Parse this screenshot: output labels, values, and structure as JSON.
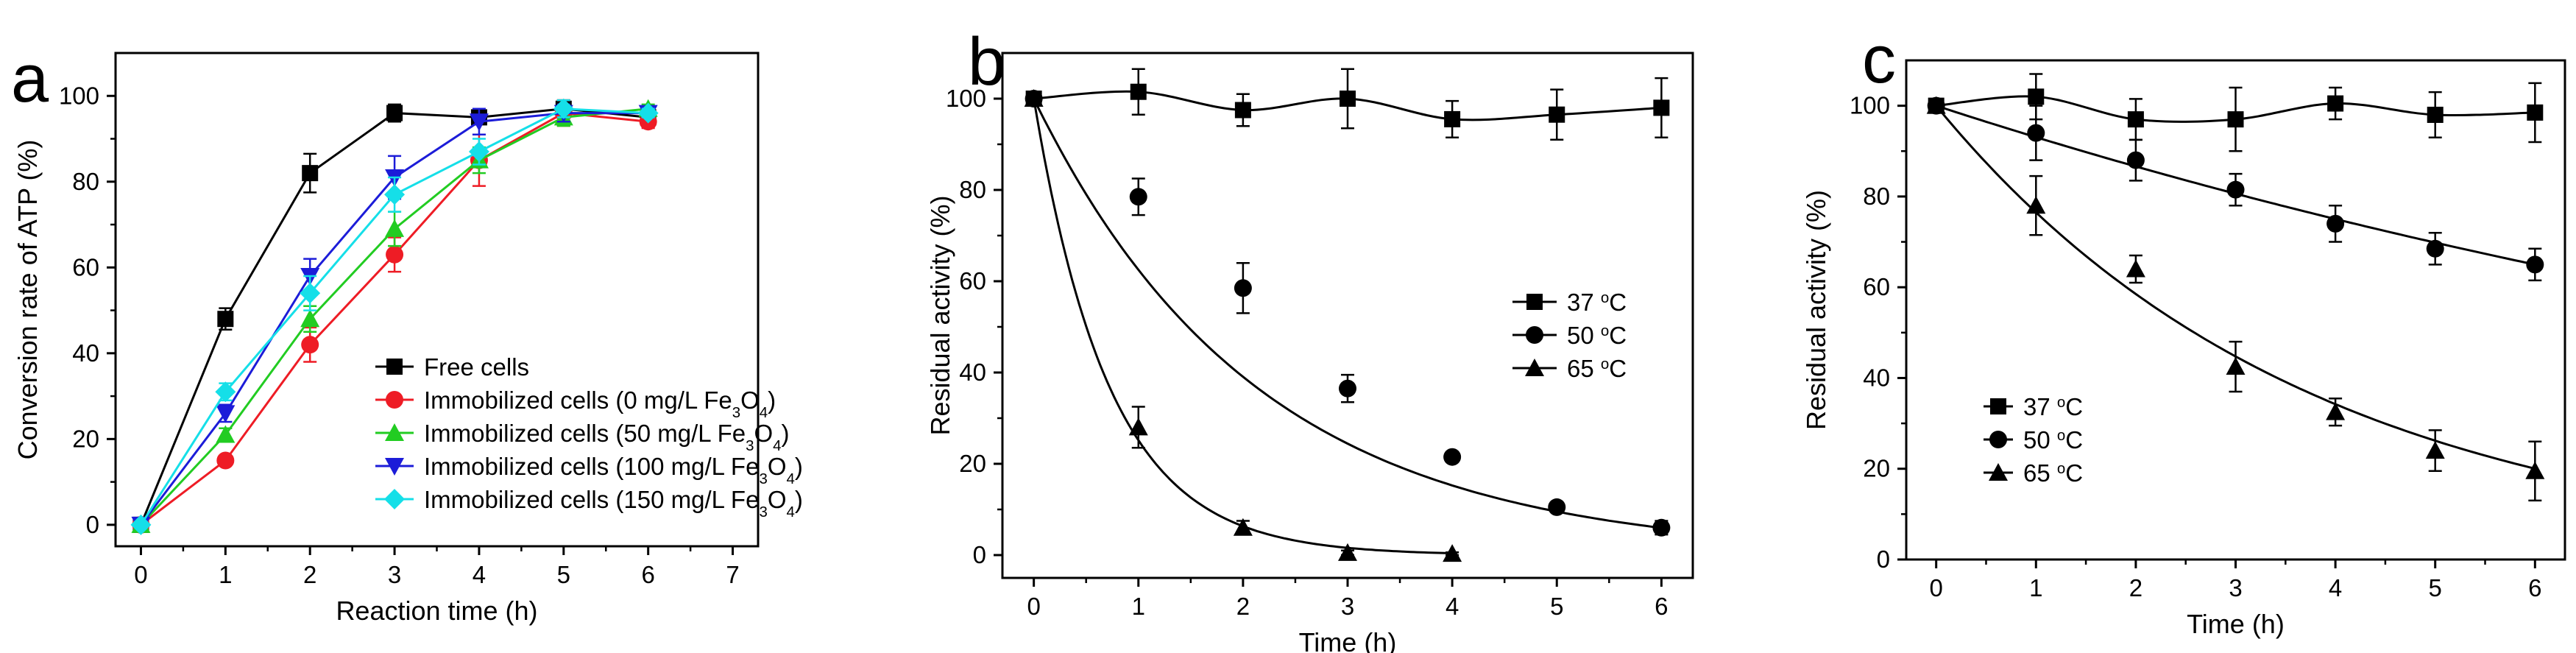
{
  "chart_data": [
    {
      "type": "line",
      "panel_label": "a",
      "xlabel": "Reaction time (h)",
      "ylabel": "Conversion rate of ATP (%)",
      "xlim": [
        -0.3,
        7.3
      ],
      "ylim": [
        -5,
        110
      ],
      "xticks": [
        0,
        1,
        2,
        3,
        4,
        5,
        6,
        7
      ],
      "yticks": [
        0,
        20,
        40,
        60,
        80,
        100
      ],
      "legend_position": "lower-right",
      "series": [
        {
          "name": "Free cells",
          "label_parts": [
            "Free cells"
          ],
          "color": "#000000",
          "marker": "square",
          "x": [
            0,
            1,
            2,
            3,
            4,
            5,
            6
          ],
          "values": [
            0,
            48,
            82,
            96,
            95,
            97,
            95
          ],
          "errors": [
            0,
            2.5,
            4.5,
            2,
            1,
            2,
            1.5
          ]
        },
        {
          "name": "Immobilized cells (0 mg/L Fe3O4)",
          "label_parts": [
            "Immobilized cells (0 mg/L Fe",
            "3",
            "O",
            "4",
            ")"
          ],
          "color": "#ee1c25",
          "marker": "circle",
          "x": [
            0,
            1,
            2,
            3,
            4,
            5,
            6
          ],
          "values": [
            0,
            15,
            42,
            63,
            85,
            96,
            94
          ],
          "errors": [
            0,
            1,
            4,
            4,
            6,
            3,
            1.5
          ]
        },
        {
          "name": "Immobilized cells (50 mg/L Fe3O4)",
          "label_parts": [
            "Immobilized cells (50 mg/L Fe",
            "3",
            "O",
            "4",
            ")"
          ],
          "color": "#22cc22",
          "marker": "triangle-up",
          "x": [
            0,
            1,
            2,
            3,
            4,
            5,
            6
          ],
          "values": [
            0,
            21,
            48,
            69,
            85,
            95,
            97
          ],
          "errors": [
            0,
            1.5,
            3,
            4,
            3,
            2,
            1
          ]
        },
        {
          "name": "Immobilized cells (100 mg/L Fe3O4)",
          "label_parts": [
            "Immobilized cells (100 mg/L Fe",
            "3",
            "O",
            "4",
            ")"
          ],
          "color": "#1c1cd8",
          "marker": "triangle-down",
          "x": [
            0,
            1,
            2,
            3,
            4,
            5,
            6
          ],
          "values": [
            0,
            26,
            58,
            81,
            94,
            96,
            96
          ],
          "errors": [
            0,
            2,
            4,
            5,
            3,
            2,
            1
          ]
        },
        {
          "name": "Immobilized cells (150 mg/L Fe3O4)",
          "label_parts": [
            "Immobilized cells (150 mg/L Fe",
            "3",
            "O",
            "4",
            ")"
          ],
          "color": "#15dfe8",
          "marker": "diamond",
          "x": [
            0,
            1,
            2,
            3,
            4,
            5,
            6
          ],
          "values": [
            0,
            31,
            54,
            77,
            87,
            97,
            96
          ],
          "errors": [
            0,
            2,
            4,
            4,
            3,
            2,
            1
          ]
        }
      ]
    },
    {
      "type": "line",
      "panel_label": "b",
      "xlabel": "Time (h)",
      "ylabel": "Residual activity (%)",
      "xlim": [
        -0.3,
        6.3
      ],
      "ylim": [
        -5,
        110
      ],
      "xticks": [
        0,
        1,
        2,
        3,
        4,
        5,
        6
      ],
      "yticks": [
        0,
        20,
        40,
        60,
        80,
        100
      ],
      "legend_position": "center-right",
      "series": [
        {
          "name": "37 °C",
          "label_parts": [
            "37 ",
            "o",
            "C"
          ],
          "color": "#000000",
          "marker": "square",
          "x": [
            0,
            1,
            2,
            3,
            4,
            5,
            6
          ],
          "values": [
            100,
            101.5,
            97.5,
            100,
            95.5,
            96.5,
            98
          ],
          "errors": [
            1,
            5,
            3.5,
            6.5,
            4,
            5.5,
            6.5
          ],
          "fit": "smooth"
        },
        {
          "name": "50 °C",
          "label_parts": [
            "50 ",
            "o",
            "C"
          ],
          "color": "#000000",
          "marker": "circle",
          "x": [
            0,
            1,
            2,
            3,
            4,
            5,
            6
          ],
          "values": [
            100,
            78.5,
            58.5,
            36.5,
            21.5,
            10.5,
            6
          ],
          "errors": [
            1,
            4,
            5.5,
            3,
            0.5,
            0.5,
            1.5
          ],
          "fit": {
            "kind": "exp",
            "a": 100,
            "k": 0.47
          }
        },
        {
          "name": "65 °C",
          "label_parts": [
            "65 ",
            "o",
            "C"
          ],
          "color": "#000000",
          "marker": "triangle-up",
          "x": [
            0,
            1,
            2,
            3,
            4
          ],
          "values": [
            100,
            28,
            6,
            0.5,
            0.3
          ],
          "errors": [
            1,
            4.5,
            1.5,
            0.5,
            0.3
          ],
          "fit": {
            "kind": "exp",
            "a": 100,
            "k": 1.38
          }
        }
      ]
    },
    {
      "type": "line",
      "panel_label": "c",
      "xlabel": "Time (h)",
      "ylabel": "Residual activity (%)",
      "xlim": [
        -0.3,
        6.3
      ],
      "ylim": [
        0,
        110
      ],
      "xticks": [
        0,
        1,
        2,
        3,
        4,
        5,
        6
      ],
      "yticks": [
        0,
        20,
        40,
        60,
        80,
        100
      ],
      "legend_position": "lower-left",
      "series": [
        {
          "name": "37 °C",
          "label_parts": [
            "37 ",
            "o",
            "C"
          ],
          "color": "#000000",
          "marker": "square",
          "x": [
            0,
            1,
            2,
            3,
            4,
            5,
            6
          ],
          "values": [
            100,
            102,
            97,
            97,
            100.5,
            98,
            98.5
          ],
          "errors": [
            1,
            5,
            4.5,
            7,
            3.5,
            5,
            6.5
          ],
          "fit": "smooth"
        },
        {
          "name": "50 °C",
          "label_parts": [
            "50 ",
            "o",
            "C"
          ],
          "color": "#000000",
          "marker": "circle",
          "x": [
            0,
            1,
            2,
            3,
            4,
            5,
            6
          ],
          "values": [
            100,
            94,
            88,
            81.5,
            74,
            68.5,
            65
          ],
          "errors": [
            1,
            6,
            4.5,
            3.5,
            4,
            3.5,
            3.5
          ],
          "fit": {
            "kind": "exp",
            "a": 100,
            "k": 0.0718
          }
        },
        {
          "name": "65 °C",
          "label_parts": [
            "65 ",
            "o",
            "C"
          ],
          "color": "#000000",
          "marker": "triangle-up",
          "x": [
            0,
            1,
            2,
            3,
            4,
            5,
            6
          ],
          "values": [
            100,
            78,
            64,
            42.5,
            32.5,
            24,
            19.5
          ],
          "errors": [
            1,
            6.5,
            3,
            5.5,
            3,
            4.5,
            6.5
          ],
          "fit": {
            "kind": "exp",
            "a": 100,
            "k": 0.268
          }
        }
      ]
    }
  ]
}
